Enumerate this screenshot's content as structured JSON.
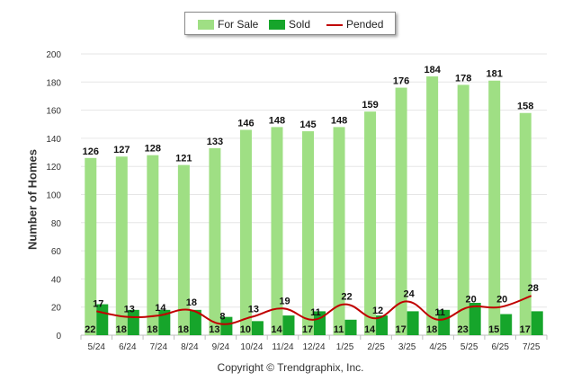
{
  "chart_data": {
    "type": "bar",
    "categories": [
      "5/24",
      "6/24",
      "7/24",
      "8/24",
      "9/24",
      "10/24",
      "11/24",
      "12/24",
      "1/25",
      "2/25",
      "3/25",
      "4/25",
      "5/25",
      "6/25",
      "7/25"
    ],
    "series": [
      {
        "name": "For Sale",
        "kind": "bar",
        "color": "#9fdf84",
        "values": [
          126,
          127,
          128,
          121,
          133,
          146,
          148,
          145,
          148,
          159,
          176,
          184,
          178,
          181,
          158
        ]
      },
      {
        "name": "Sold",
        "kind": "bar",
        "color": "#16a52b",
        "values": [
          22,
          18,
          18,
          18,
          13,
          10,
          14,
          17,
          11,
          14,
          17,
          18,
          23,
          15,
          17
        ]
      },
      {
        "name": "Pended",
        "kind": "line",
        "color": "#c00000",
        "values": [
          17,
          13,
          14,
          18,
          8,
          13,
          19,
          11,
          22,
          12,
          24,
          11,
          20,
          20,
          28
        ]
      }
    ],
    "ylabel": "Number of Homes",
    "xlabel": "",
    "ylim": [
      0,
      200
    ],
    "yticks": [
      0,
      20,
      40,
      60,
      80,
      100,
      120,
      140,
      160,
      180,
      200
    ],
    "grid": true,
    "legend_position": "top-center"
  },
  "copyright": "Copyright © Trendgraphix, Inc."
}
